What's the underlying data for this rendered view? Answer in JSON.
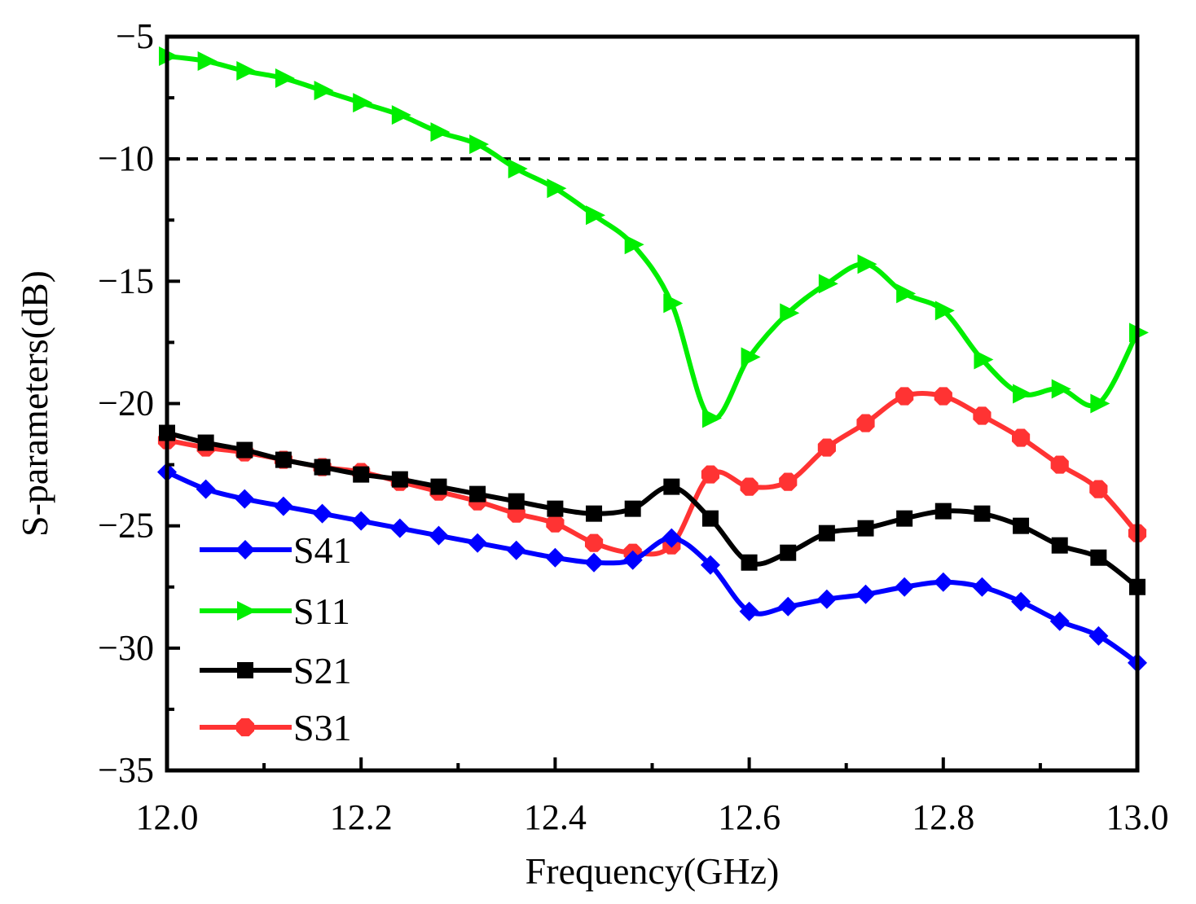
{
  "chart_data": {
    "type": "line",
    "title": "",
    "xlabel": "Frequency(GHz)",
    "ylabel": "S-parameters(dB)",
    "xlim": [
      12.0,
      13.0
    ],
    "ylim": [
      -35,
      -5
    ],
    "xticks": [
      12.0,
      12.2,
      12.4,
      12.6,
      12.8,
      13.0
    ],
    "xtick_labels": [
      "12.0",
      "12.2",
      "12.4",
      "12.6",
      "12.8",
      "13.0"
    ],
    "yticks": [
      -5,
      -10,
      -15,
      -20,
      -25,
      -30,
      -35
    ],
    "ytick_labels": [
      "−5",
      "−10",
      "−15",
      "−20",
      "−25",
      "−30",
      "−35"
    ],
    "grid": false,
    "legend_position": "bottom-left",
    "reference_line": {
      "y": -10,
      "style": "dashed",
      "color": "#000000"
    },
    "x": [
      12.0,
      12.04,
      12.08,
      12.12,
      12.16,
      12.2,
      12.24,
      12.28,
      12.32,
      12.36,
      12.4,
      12.44,
      12.48,
      12.52,
      12.56,
      12.6,
      12.64,
      12.68,
      12.72,
      12.76,
      12.8,
      12.84,
      12.88,
      12.92,
      12.96,
      13.0
    ],
    "series": [
      {
        "name": "S41",
        "color": "#0000ff",
        "marker": "diamond",
        "values": [
          -22.8,
          -23.5,
          -23.9,
          -24.2,
          -24.5,
          -24.8,
          -25.1,
          -25.4,
          -25.7,
          -26.0,
          -26.3,
          -26.5,
          -26.4,
          -25.5,
          -26.6,
          -28.5,
          -28.3,
          -28.0,
          -27.8,
          -27.5,
          -27.3,
          -27.5,
          -28.1,
          -28.9,
          -29.5,
          -30.6
        ]
      },
      {
        "name": "S11",
        "color": "#00ee00",
        "marker": "triangle-right",
        "values": [
          -5.8,
          -6.0,
          -6.4,
          -6.7,
          -7.2,
          -7.7,
          -8.2,
          -8.9,
          -9.4,
          -10.4,
          -11.2,
          -12.3,
          -13.5,
          -15.9,
          -20.6,
          -18.1,
          -16.3,
          -15.1,
          -14.3,
          -15.5,
          -16.2,
          -18.2,
          -19.6,
          -19.4,
          -20.0,
          -17.1
        ]
      },
      {
        "name": "S21",
        "color": "#000000",
        "marker": "square",
        "values": [
          -21.2,
          -21.6,
          -21.9,
          -22.3,
          -22.6,
          -22.9,
          -23.1,
          -23.4,
          -23.7,
          -24.0,
          -24.3,
          -24.5,
          -24.3,
          -23.4,
          -24.7,
          -26.5,
          -26.1,
          -25.3,
          -25.1,
          -24.7,
          -24.4,
          -24.5,
          -25.0,
          -25.8,
          -26.3,
          -27.5
        ]
      },
      {
        "name": "S31",
        "color": "#ff3333",
        "marker": "octagon",
        "values": [
          -21.5,
          -21.8,
          -22.0,
          -22.3,
          -22.6,
          -22.8,
          -23.2,
          -23.6,
          -24.0,
          -24.5,
          -24.9,
          -25.7,
          -26.1,
          -25.8,
          -22.9,
          -23.4,
          -23.2,
          -21.8,
          -20.8,
          -19.7,
          -19.7,
          -20.5,
          -21.4,
          -22.5,
          -23.5,
          -25.3
        ]
      }
    ],
    "legend": [
      "S41",
      "S11",
      "S21",
      "S31"
    ]
  }
}
